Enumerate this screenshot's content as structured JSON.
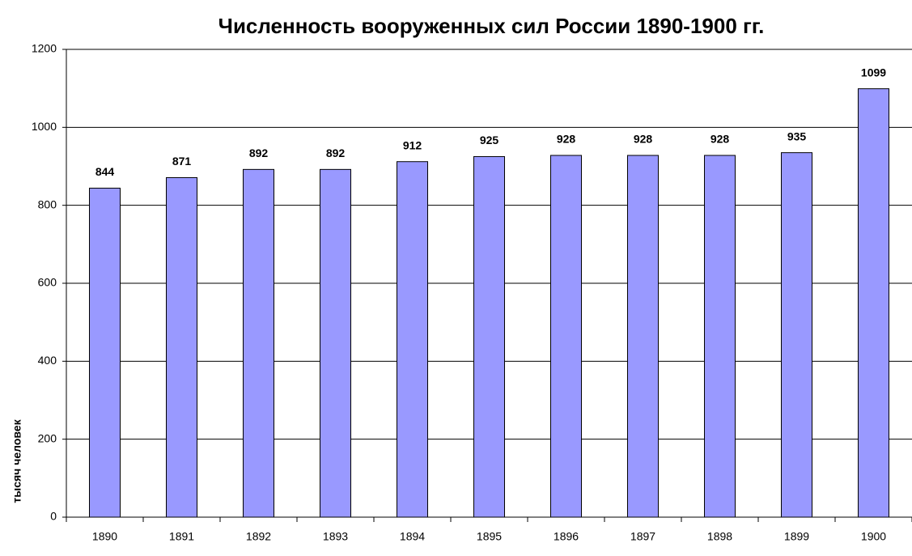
{
  "chart_data": {
    "type": "bar",
    "title": "Численность вооруженных сил России 1890-1900 гг.",
    "y_label": "тысяч человек",
    "categories": [
      "1890",
      "1891",
      "1892",
      "1893",
      "1894",
      "1895",
      "1896",
      "1897",
      "1898",
      "1899",
      "1900"
    ],
    "values": [
      844,
      871,
      892,
      892,
      912,
      925,
      928,
      928,
      928,
      935,
      1099
    ],
    "color": "#9999ff",
    "ylim": [
      0,
      1200
    ],
    "yticks": [
      0,
      200,
      400,
      600,
      800,
      1000,
      1200
    ],
    "grid": true
  }
}
